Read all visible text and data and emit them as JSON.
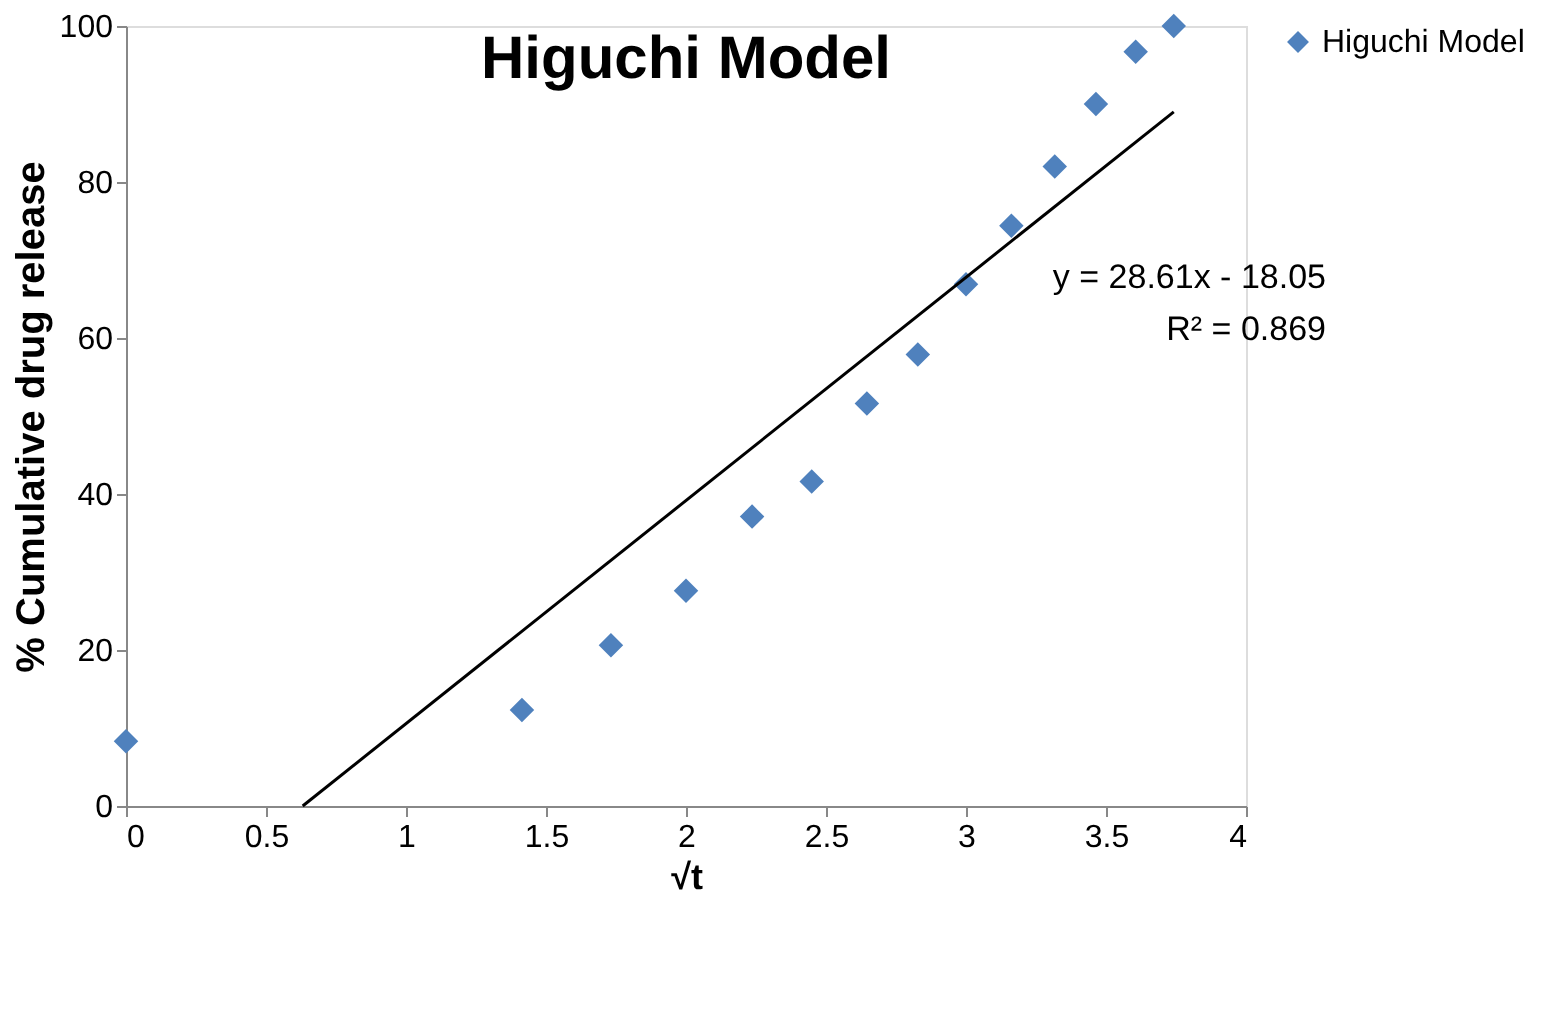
{
  "chart_data": {
    "type": "scatter",
    "title": "Higuchi Model",
    "xlabel": "√t",
    "ylabel": "% Cumulative drug release",
    "x": [
      0,
      1.414,
      1.732,
      2,
      2.236,
      2.449,
      2.646,
      2.828,
      3,
      3.162,
      3.317,
      3.464,
      3.606,
      3.742
    ],
    "series": [
      {
        "name": "Higuchi Model",
        "color": "#4f81bd",
        "marker": "diamond",
        "values": [
          8.3,
          12.3,
          20.6,
          27.6,
          37.1,
          41.6,
          51.6,
          57.9,
          66.9,
          74.4,
          82.0,
          90.0,
          96.7,
          100
        ]
      },
      {
        "type": "line",
        "color": "#000000",
        "x": [
          0.631,
          3.742
        ],
        "values": [
          0,
          89.0
        ]
      }
    ],
    "annotations": [
      "y = 28.61x - 18.05",
      "R² = 0.869"
    ],
    "xlim": [
      0,
      4
    ],
    "xticks": [
      0,
      0.5,
      1,
      1.5,
      2,
      2.5,
      3,
      3.5,
      4
    ],
    "ylim": [
      0,
      100
    ],
    "yticks": [
      0,
      20,
      40,
      60,
      80,
      100
    ],
    "grid": false,
    "legend": "right"
  }
}
